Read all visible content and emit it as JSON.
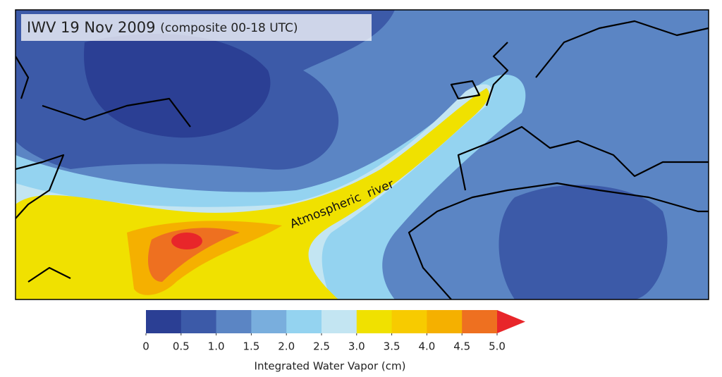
{
  "map": {
    "title": "IWV 19 Nov 2009",
    "subtitle": "(composite 00-18 UTC)",
    "annotation": "Atmospheric  river"
  },
  "colorbar": {
    "lim": [
      0,
      5
    ],
    "ticks": [
      0,
      0.5,
      {
        "value": 1,
        "label": "1.0"
      },
      1.5,
      {
        "value": 2,
        "label": "2.0"
      },
      2.5,
      {
        "value": 3,
        "label": "3.0"
      },
      3.5,
      {
        "value": 4,
        "label": "4.0"
      },
      4.5,
      {
        "value": 5,
        "label": "5.0"
      }
    ],
    "colors": [
      "#2b3f94",
      "#3c5aa8",
      "#5b85c4",
      "#79aedd",
      "#94d3f0",
      "#c3e5f2",
      "#f0e100",
      "#f7cb00",
      "#f5b000",
      "#ee7020"
    ],
    "over_color": "#e8262a",
    "label": "Integrated Water Vapor (cm)"
  }
}
